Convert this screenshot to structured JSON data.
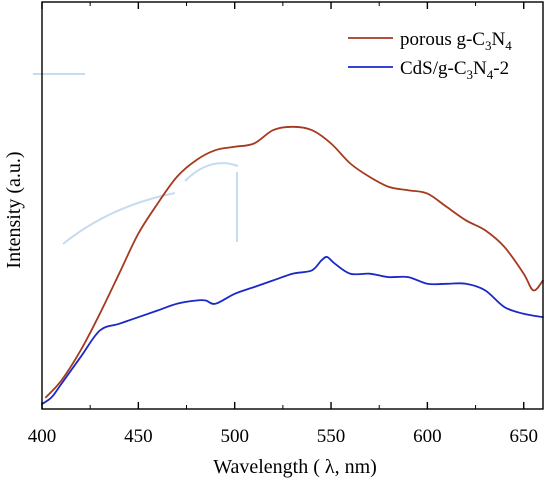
{
  "chart_data": {
    "type": "line",
    "xlabel": "Wavelength ( λ, nm)",
    "ylabel": "Intensity (a.u.)",
    "xlim": [
      400,
      660
    ],
    "ylim": [
      0,
      1
    ],
    "x_ticks": [
      "400",
      "450",
      "500",
      "550",
      "600",
      "650"
    ],
    "x_tick_values": [
      400,
      450,
      500,
      550,
      600,
      650
    ],
    "grid": false,
    "legend_position": "top-right",
    "series": [
      {
        "name": "porous g-C3N4",
        "legend_parts": [
          "porous g-C",
          "3",
          "N",
          "4",
          ""
        ],
        "color": "#a53a1f",
        "x": [
          402,
          410,
          420,
          430,
          440,
          450,
          460,
          470,
          480,
          490,
          500,
          510,
          520,
          530,
          540,
          550,
          560,
          570,
          580,
          590,
          600,
          610,
          620,
          630,
          640,
          650,
          655,
          660
        ],
        "y": [
          0.02,
          0.07,
          0.16,
          0.27,
          0.39,
          0.51,
          0.6,
          0.68,
          0.73,
          0.76,
          0.77,
          0.78,
          0.82,
          0.83,
          0.82,
          0.78,
          0.72,
          0.68,
          0.65,
          0.64,
          0.63,
          0.59,
          0.55,
          0.52,
          0.47,
          0.39,
          0.34,
          0.37
        ]
      },
      {
        "name": "CdS/g-C3N4-2",
        "legend_parts": [
          "CdS/g-C",
          "3",
          "N",
          "4",
          "-2"
        ],
        "color": "#1a28c8",
        "x": [
          400,
          405,
          410,
          420,
          430,
          440,
          450,
          460,
          470,
          480,
          485,
          490,
          500,
          510,
          520,
          530,
          540,
          545,
          548,
          552,
          560,
          570,
          580,
          590,
          600,
          610,
          620,
          630,
          640,
          650,
          660
        ],
        "y": [
          0.0,
          0.02,
          0.06,
          0.14,
          0.22,
          0.24,
          0.26,
          0.28,
          0.3,
          0.31,
          0.31,
          0.3,
          0.33,
          0.35,
          0.37,
          0.39,
          0.4,
          0.43,
          0.44,
          0.42,
          0.39,
          0.39,
          0.38,
          0.38,
          0.36,
          0.36,
          0.36,
          0.34,
          0.29,
          0.27,
          0.26
        ]
      }
    ]
  }
}
